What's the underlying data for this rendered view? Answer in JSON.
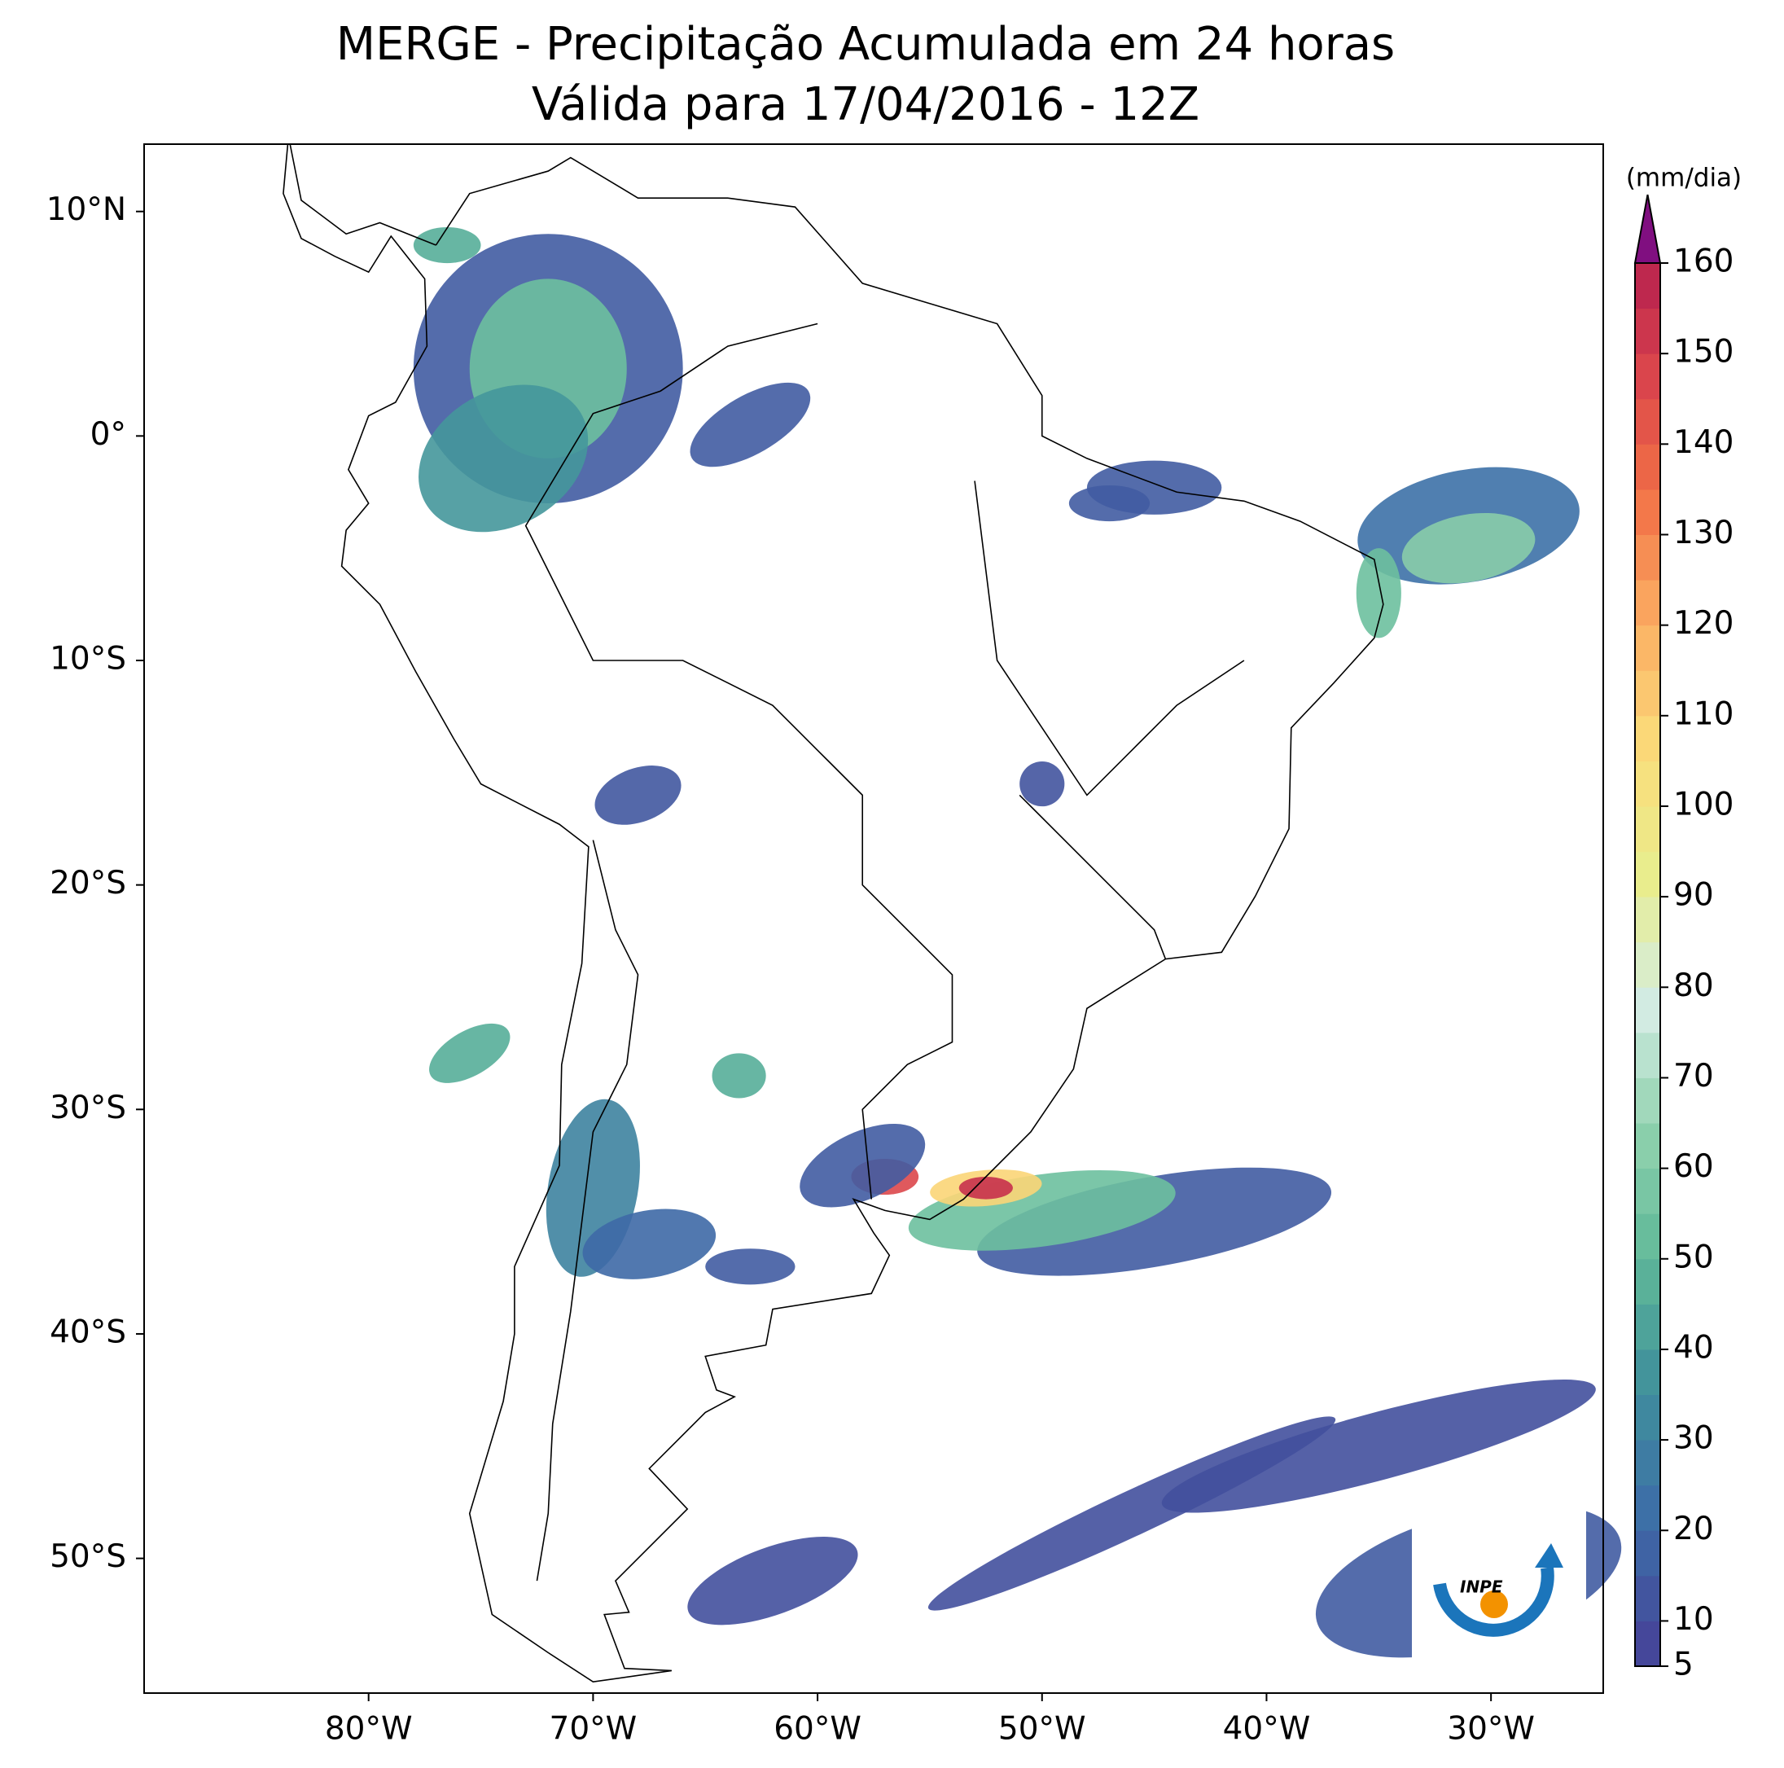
{
  "map": {
    "title": "MERGE - Precipitação Acumulada em 24 horas",
    "subtitle": "Válida para 17/04/2016 - 12Z",
    "lonlim": [
      -90,
      -25
    ],
    "latlim": [
      -56,
      13
    ],
    "lon_ticks": [
      {
        "value": -80,
        "label": "80°W"
      },
      {
        "value": -70,
        "label": "70°W"
      },
      {
        "value": -60,
        "label": "60°W"
      },
      {
        "value": -50,
        "label": "50°W"
      },
      {
        "value": -40,
        "label": "40°W"
      },
      {
        "value": -30,
        "label": "30°W"
      }
    ],
    "lat_ticks": [
      {
        "value": 10,
        "label": "10°N"
      },
      {
        "value": 0,
        "label": "0°"
      },
      {
        "value": -10,
        "label": "10°S"
      },
      {
        "value": -20,
        "label": "20°S"
      },
      {
        "value": -30,
        "label": "30°S"
      },
      {
        "value": -40,
        "label": "40°S"
      },
      {
        "value": -50,
        "label": "50°S"
      }
    ],
    "colorbar": {
      "label": "(mm/dia)",
      "lim": [
        5,
        160
      ],
      "ticks": [
        5,
        10,
        20,
        30,
        40,
        50,
        60,
        70,
        80,
        90,
        100,
        110,
        120,
        130,
        140,
        150,
        160
      ],
      "colors": [
        "#45479a",
        "#3d6ea8",
        "#3f8f9c",
        "#5fb898",
        "#8fd1ad",
        "#d4ece4",
        "#e8ee8e",
        "#fbdc7a",
        "#fbae63",
        "#f27046",
        "#d8424c",
        "#b01a4f"
      ],
      "over_color": "#800f80"
    },
    "logo_text": "INPE"
  }
}
